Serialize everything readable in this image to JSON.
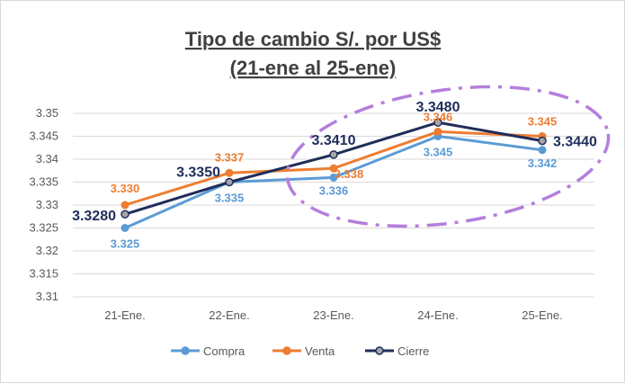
{
  "chart_data": {
    "type": "line",
    "title_lines": [
      "Tipo de cambio S/. por US$",
      "(21-ene al 25-ene)"
    ],
    "categories": [
      "21-Ene.",
      "22-Ene.",
      "23-Ene.",
      "24-Ene.",
      "25-Ene."
    ],
    "ylim": [
      3.31,
      3.35
    ],
    "yticks": [
      "3.31",
      "3.315",
      "3.32",
      "3.325",
      "3.33",
      "3.335",
      "3.34",
      "3.345",
      "3.35"
    ],
    "grid": true,
    "legend_position": "bottom",
    "series": [
      {
        "name": "Compra",
        "color": "#5b9bd5",
        "values": [
          3.325,
          3.335,
          3.336,
          3.345,
          3.342
        ],
        "labels": [
          "3.325",
          "3.335",
          "3.336",
          "3.345",
          "3.342"
        ]
      },
      {
        "name": "Venta",
        "color": "#ed7d31",
        "values": [
          3.33,
          3.337,
          3.338,
          3.346,
          3.345
        ],
        "labels": [
          "3.330",
          "3.337",
          "3.338",
          "3.346",
          "3.345"
        ]
      },
      {
        "name": "Cierre",
        "color": "#1f2d5a",
        "values": [
          3.328,
          3.335,
          3.341,
          3.348,
          3.344
        ],
        "labels": [
          "3.3280",
          "3.3350",
          "3.3410",
          "3.3480",
          "3.3440"
        ]
      }
    ],
    "annotation_color": "#b57edc"
  }
}
